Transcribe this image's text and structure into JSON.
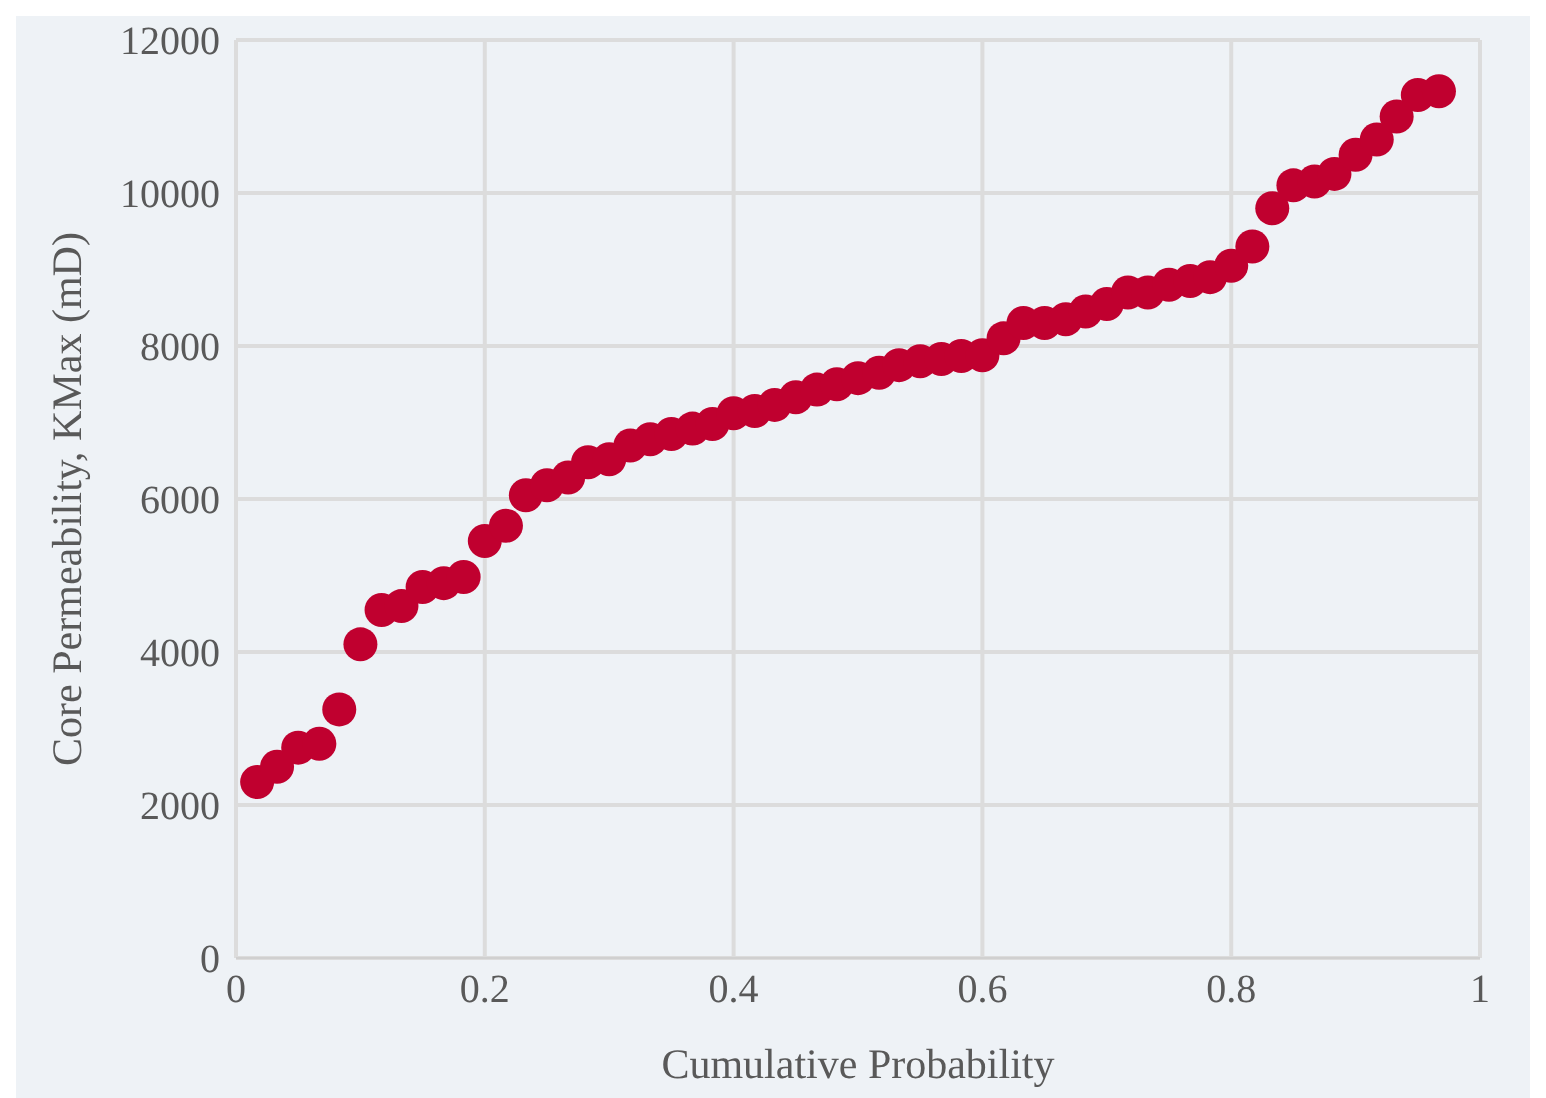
{
  "chart_data": {
    "type": "scatter",
    "xlabel": "Cumulative Probability",
    "ylabel": "Core Permeability, KMax (mD)",
    "x": [
      0.017,
      0.033,
      0.05,
      0.067,
      0.083,
      0.1,
      0.117,
      0.133,
      0.15,
      0.167,
      0.183,
      0.2,
      0.217,
      0.233,
      0.25,
      0.267,
      0.283,
      0.3,
      0.317,
      0.333,
      0.35,
      0.367,
      0.383,
      0.4,
      0.417,
      0.433,
      0.45,
      0.467,
      0.483,
      0.5,
      0.517,
      0.533,
      0.55,
      0.567,
      0.583,
      0.6,
      0.617,
      0.633,
      0.65,
      0.667,
      0.683,
      0.7,
      0.717,
      0.733,
      0.75,
      0.767,
      0.783,
      0.8,
      0.817,
      0.833,
      0.85,
      0.867,
      0.883,
      0.9,
      0.917,
      0.933,
      0.95,
      0.967
    ],
    "series": [
      {
        "color": "#c0002f",
        "values": [
          2300,
          2500,
          2750,
          2800,
          3250,
          4100,
          4550,
          4600,
          4850,
          4900,
          4980,
          5450,
          5650,
          6050,
          6180,
          6280,
          6480,
          6520,
          6700,
          6780,
          6850,
          6920,
          6980,
          7120,
          7150,
          7230,
          7330,
          7430,
          7500,
          7580,
          7650,
          7750,
          7800,
          7830,
          7870,
          7880,
          8100,
          8300,
          8300,
          8350,
          8450,
          8550,
          8700,
          8700,
          8800,
          8850,
          8900,
          9050,
          9300,
          9800,
          10100,
          10150,
          10250,
          10500,
          10700,
          11000,
          11280,
          11330
        ]
      }
    ],
    "xlim": [
      0,
      1
    ],
    "xticks": [
      0,
      0.2,
      0.4,
      0.6,
      0.8,
      1
    ],
    "ylim": [
      0,
      12000
    ],
    "yticks": [
      0,
      2000,
      4000,
      6000,
      8000,
      10000,
      12000
    ],
    "grid": true,
    "marker": "circle",
    "legend": false
  }
}
